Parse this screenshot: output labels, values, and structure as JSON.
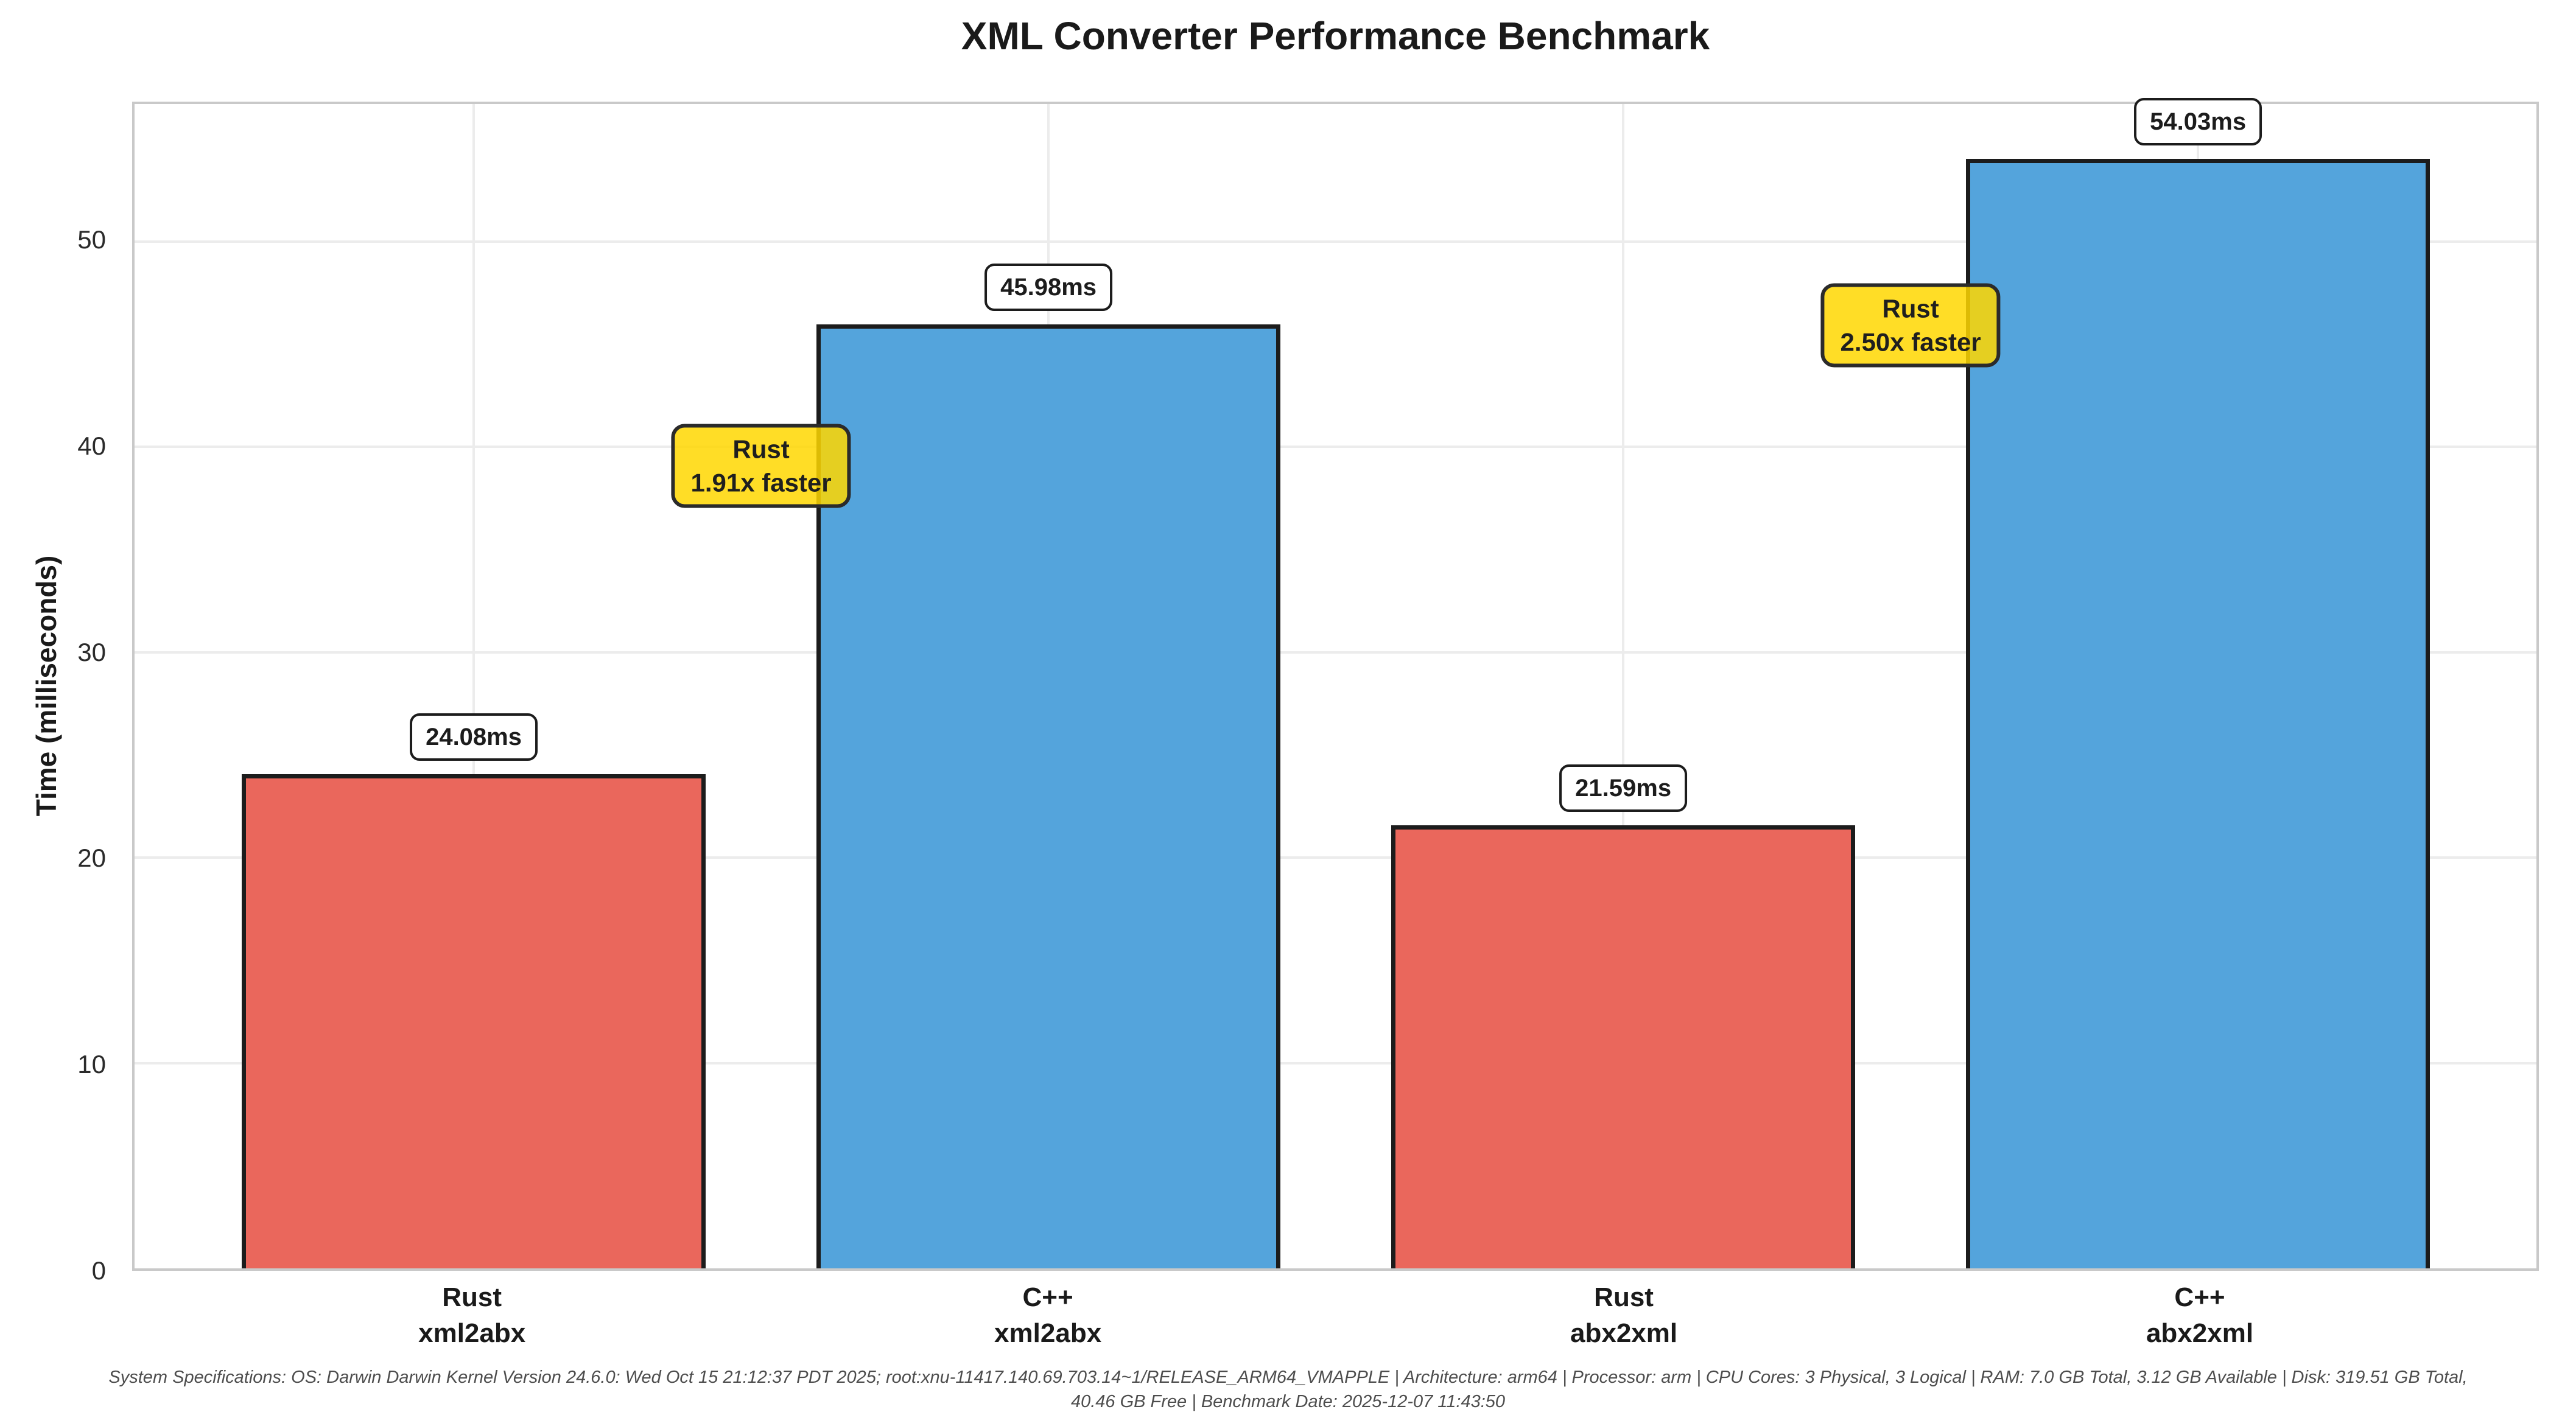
{
  "chart_data": {
    "type": "bar",
    "title": "XML Converter Performance Benchmark",
    "xlabel": "",
    "ylabel": "Time (milliseconds)",
    "ylim": [
      0,
      56.7
    ],
    "yticks": [
      0,
      10,
      20,
      30,
      40,
      50
    ],
    "grid": true,
    "legend_position": "none",
    "categories": [
      "Rust\nxml2abx",
      "C++\nxml2abx",
      "Rust\nabx2xml",
      "C++\nabx2xml"
    ],
    "values": [
      24.08,
      45.98,
      21.59,
      54.03
    ],
    "bar_labels": [
      "24.08ms",
      "45.98ms",
      "21.59ms",
      "54.03ms"
    ],
    "bar_colors": [
      "#ea675c",
      "#54a4dc",
      "#ea675c",
      "#54a4dc"
    ],
    "bar_edge_color": "#1c1c1c",
    "gridline_color": "#ececec",
    "annotation_bg_color": "#ffd700",
    "annotations": [
      {
        "text": "Rust\n1.91x faster",
        "between_categories": [
          0,
          1
        ],
        "anchor_value": 39.08
      },
      {
        "text": "Rust\n2.50x faster",
        "between_categories": [
          2,
          3
        ],
        "anchor_value": 45.93
      }
    ]
  },
  "footer": {
    "line1": "System Specifications: OS: Darwin Darwin Kernel Version 24.6.0: Wed Oct 15 21:12:37 PDT 2025; root:xnu-11417.140.69.703.14~1/RELEASE_ARM64_VMAPPLE | Architecture: arm64 | Processor: arm | CPU Cores: 3 Physical, 3 Logical | RAM: 7.0 GB Total, 3.12 GB Available | Disk: 319.51 GB Total,",
    "line2": "40.46 GB Free | Benchmark Date: 2025-12-07 11:43:50"
  }
}
